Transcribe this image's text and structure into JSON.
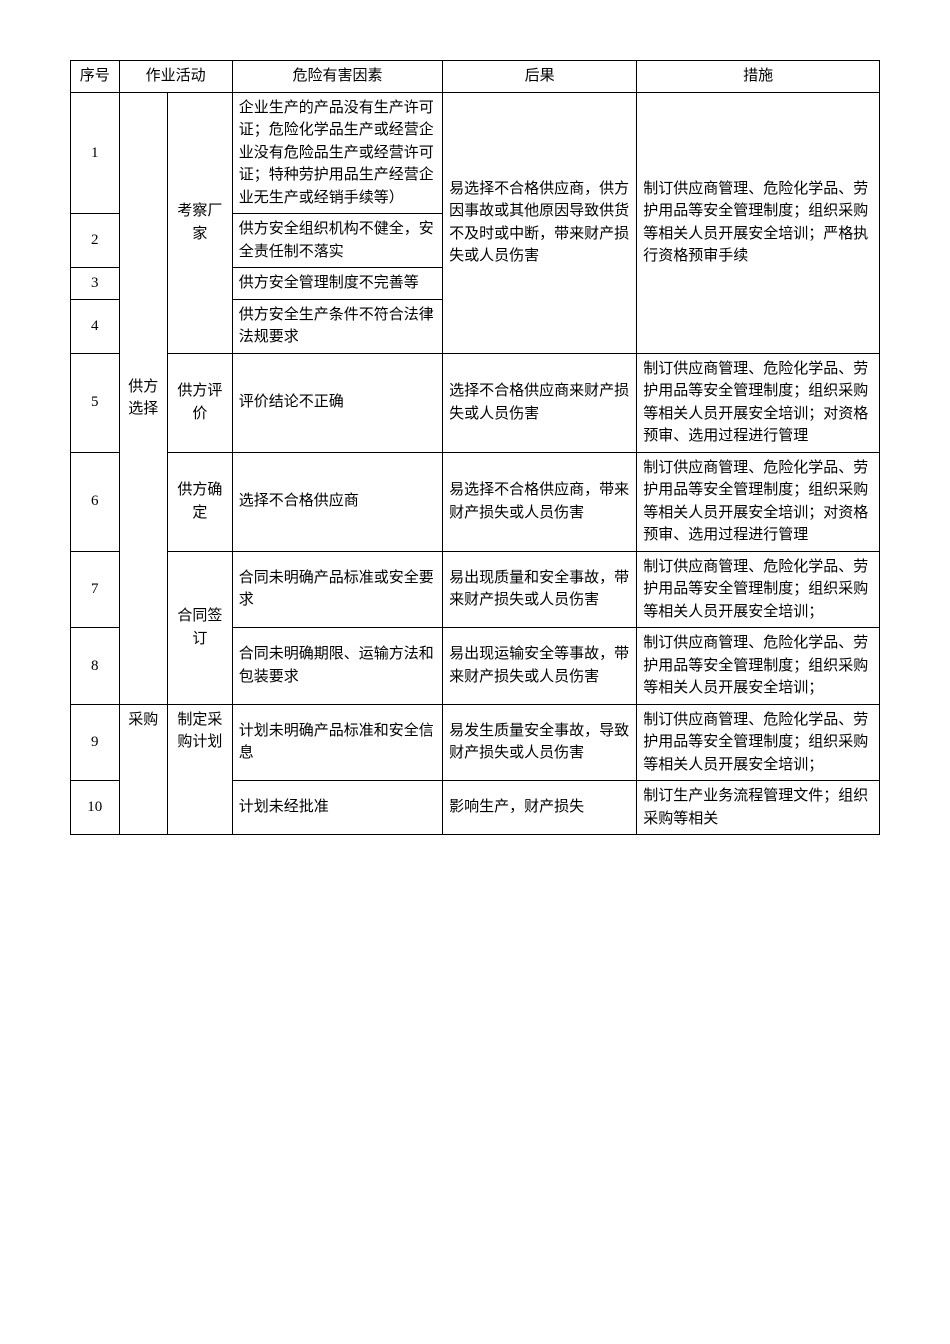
{
  "headers": {
    "seq": "序号",
    "activity": "作业活动",
    "hazard": "危险有害因素",
    "consequence": "后果",
    "measure": "措施"
  },
  "rows": {
    "r1": {
      "seq": "1",
      "act1": "供方选择",
      "act2": "考察厂家",
      "hazard": "企业生产的产品没有生产许可证；危险化学品生产或经营企业没有危险品生产或经营许可证；特种劳护用品生产经营企业无生产或经销手续等）",
      "consequence": "易选择不合格供应商，供方因事故或其他原因导致供货不及时或中断，带来财产损失或人员伤害",
      "measure": "制订供应商管理、危险化学品、劳护用品等安全管理制度；组织采购等相关人员开展安全培训；严格执行资格预审手续"
    },
    "r2": {
      "seq": "2",
      "hazard": "供方安全组织机构不健全，安全责任制不落实"
    },
    "r3": {
      "seq": "3",
      "hazard": "供方安全管理制度不完善等"
    },
    "r4": {
      "seq": "4",
      "hazard": "供方安全生产条件不符合法律法规要求"
    },
    "r5": {
      "seq": "5",
      "act2": "供方评价",
      "hazard": "评价结论不正确",
      "consequence": "选择不合格供应商来财产损失或人员伤害",
      "measure": "制订供应商管理、危险化学品、劳护用品等安全管理制度；组织采购等相关人员开展安全培训；对资格预审、选用过程进行管理"
    },
    "r6": {
      "seq": "6",
      "act2": "供方确定",
      "hazard": "选择不合格供应商",
      "consequence": "易选择不合格供应商，带来财产损失或人员伤害",
      "measure": "制订供应商管理、危险化学品、劳护用品等安全管理制度；组织采购等相关人员开展安全培训；对资格预审、选用过程进行管理"
    },
    "r7": {
      "seq": "7",
      "act2": "合同签订",
      "hazard": "合同未明确产品标准或安全要求",
      "consequence": "易出现质量和安全事故，带来财产损失或人员伤害",
      "measure": "制订供应商管理、危险化学品、劳护用品等安全管理制度；组织采购等相关人员开展安全培训；"
    },
    "r8": {
      "seq": "8",
      "hazard": "合同未明确期限、运输方法和包装要求",
      "consequence": "易出现运输安全等事故，带来财产损失或人员伤害",
      "measure": "制订供应商管理、危险化学品、劳护用品等安全管理制度；组织采购等相关人员开展安全培训；"
    },
    "r9": {
      "seq": "9",
      "act1": "采购",
      "act2": "制定采购计划",
      "hazard": "计划未明确产品标准和安全信息",
      "consequence": "易发生质量安全事故，导致财产损失或人员伤害",
      "measure": "制订供应商管理、危险化学品、劳护用品等安全管理制度；组织采购等相关人员开展安全培训；"
    },
    "r10": {
      "seq": "10",
      "hazard": "计划未经批准",
      "consequence": "影响生产，财产损失",
      "measure": "制订生产业务流程管理文件；组织采购等相关"
    }
  }
}
